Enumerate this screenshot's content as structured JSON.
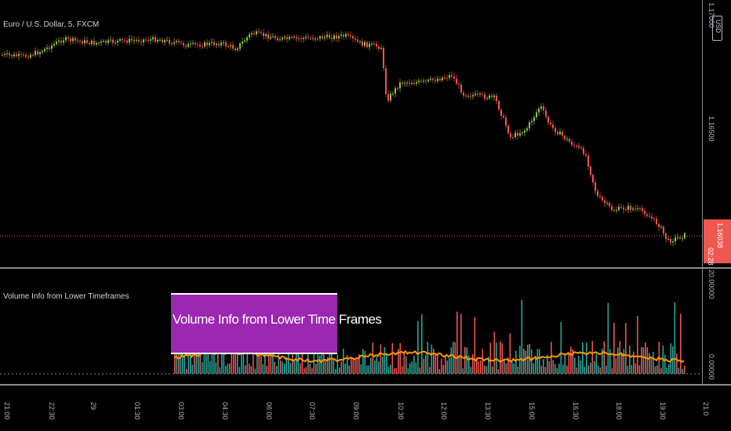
{
  "symbol_title": "Euro / U.S. Dollar, 5, FXCM",
  "indicator_title": "Volume Info from Lower Timeframes",
  "overlay_label": "Volume Info from Lower Time Frames",
  "price_axis": {
    "currency_button": "USD",
    "labels": [
      "1.17000",
      "1.16500"
    ],
    "last_price": "1.16038",
    "countdown": "02:28"
  },
  "indicator_axis": {
    "labels": [
      "20.00000",
      "0.00000"
    ]
  },
  "time_axis": {
    "labels": [
      "21:00",
      "22:30",
      "29",
      "01:30",
      "03:00",
      "04:30",
      "06:00",
      "07:30",
      "09:00",
      "10:30",
      "12:00",
      "13:30",
      "15:00",
      "16:30",
      "18:00",
      "19:30",
      "21:0"
    ]
  },
  "colors": {
    "background": "#000000",
    "bull": "#26a69a",
    "bear": "#ef5350",
    "bull_candle": "#8bc34a",
    "bear_candle": "#f0574f",
    "average_line": "#ff9800",
    "overlay": "#9c27b0",
    "last_price_line": "#ff5252"
  }
}
